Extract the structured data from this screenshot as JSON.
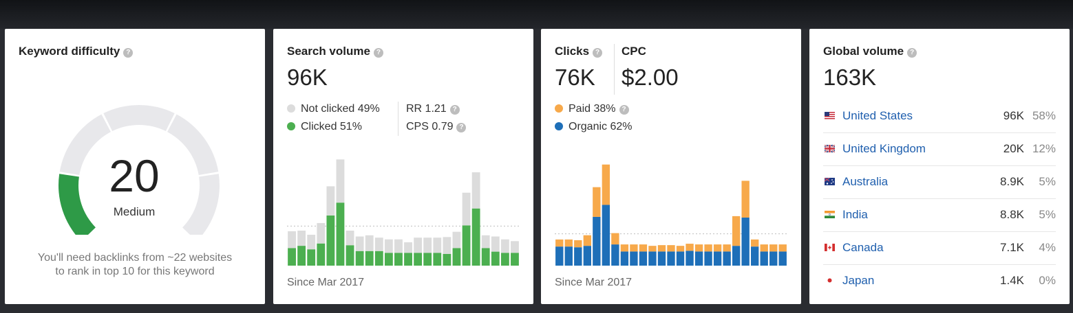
{
  "keyword_difficulty": {
    "title": "Keyword difficulty",
    "value": "20",
    "level": "Medium",
    "score": 20,
    "note_line1": "You'll need backlinks from ~22 websites",
    "note_line2": "to rank in top 10 for this keyword",
    "colors": {
      "filled": "#2e9a47",
      "empty": "#e8e8eb"
    }
  },
  "search_volume": {
    "title": "Search volume",
    "value": "96K",
    "not_clicked": "Not clicked 49%",
    "clicked": "Clicked 51%",
    "rr": "RR 1.21",
    "cps": "CPS 0.79",
    "since": "Since Mar 2017",
    "colors": {
      "clicked": "#4caf50",
      "not_clicked": "#dcdcdc"
    }
  },
  "clicks": {
    "title": "Clicks",
    "value": "76K",
    "cpc_title": "CPC",
    "cpc_value": "$2.00",
    "paid": "Paid 38%",
    "organic": "Organic 62%",
    "since": "Since Mar 2017",
    "colors": {
      "paid": "#f7a94b",
      "organic": "#1e6fb8"
    }
  },
  "global_volume": {
    "title": "Global volume",
    "value": "163K",
    "countries": [
      {
        "name": "United States",
        "volume": "96K",
        "pct": "58%",
        "flag": "us-flag-icon"
      },
      {
        "name": "United Kingdom",
        "volume": "20K",
        "pct": "12%",
        "flag": "uk-flag-icon"
      },
      {
        "name": "Australia",
        "volume": "8.9K",
        "pct": "5%",
        "flag": "australia-flag-icon"
      },
      {
        "name": "India",
        "volume": "8.8K",
        "pct": "5%",
        "flag": "india-flag-icon"
      },
      {
        "name": "Canada",
        "volume": "7.1K",
        "pct": "4%",
        "flag": "canada-flag-icon"
      },
      {
        "name": "Japan",
        "volume": "1.4K",
        "pct": "0%",
        "flag": "japan-flag-icon"
      }
    ]
  },
  "chart_data": [
    {
      "type": "bar",
      "stacked": true,
      "grid": false,
      "reference_line": "dashed average",
      "series": [
        {
          "name": "Clicked",
          "values": [
            3.0,
            3.4,
            2.8,
            3.8,
            8.6,
            10.8,
            3.5,
            2.5,
            2.5,
            2.5,
            2.2,
            2.2,
            2.2,
            2.2,
            2.2,
            2.2,
            2.0,
            3.0,
            6.9,
            9.8,
            3.0,
            2.4,
            2.2,
            2.2
          ]
        },
        {
          "name": "Not clicked",
          "values": [
            2.9,
            2.6,
            2.5,
            3.5,
            5.0,
            7.4,
            2.5,
            2.5,
            2.7,
            2.3,
            2.3,
            2.3,
            1.8,
            2.6,
            2.6,
            2.6,
            2.9,
            2.8,
            5.6,
            6.2,
            2.2,
            2.6,
            2.3,
            2.0
          ]
        }
      ]
    },
    {
      "type": "bar",
      "stacked": true,
      "grid": false,
      "reference_line": "dashed average",
      "series": [
        {
          "name": "Organic",
          "values": [
            2.7,
            2.7,
            2.6,
            2.8,
            6.9,
            8.6,
            3.0,
            2.0,
            2.0,
            2.0,
            2.0,
            2.0,
            2.0,
            2.0,
            2.1,
            2.0,
            2.0,
            2.0,
            2.0,
            2.8,
            6.8,
            2.7,
            2.0,
            2.0,
            2.0
          ]
        },
        {
          "name": "Paid",
          "values": [
            1.0,
            1.0,
            1.0,
            1.5,
            4.2,
            5.7,
            1.6,
            1.0,
            1.0,
            1.0,
            0.8,
            0.9,
            0.9,
            0.8,
            1.0,
            1.0,
            1.0,
            1.0,
            1.0,
            4.2,
            5.2,
            1.0,
            1.0,
            1.0,
            1.0
          ]
        }
      ]
    }
  ]
}
